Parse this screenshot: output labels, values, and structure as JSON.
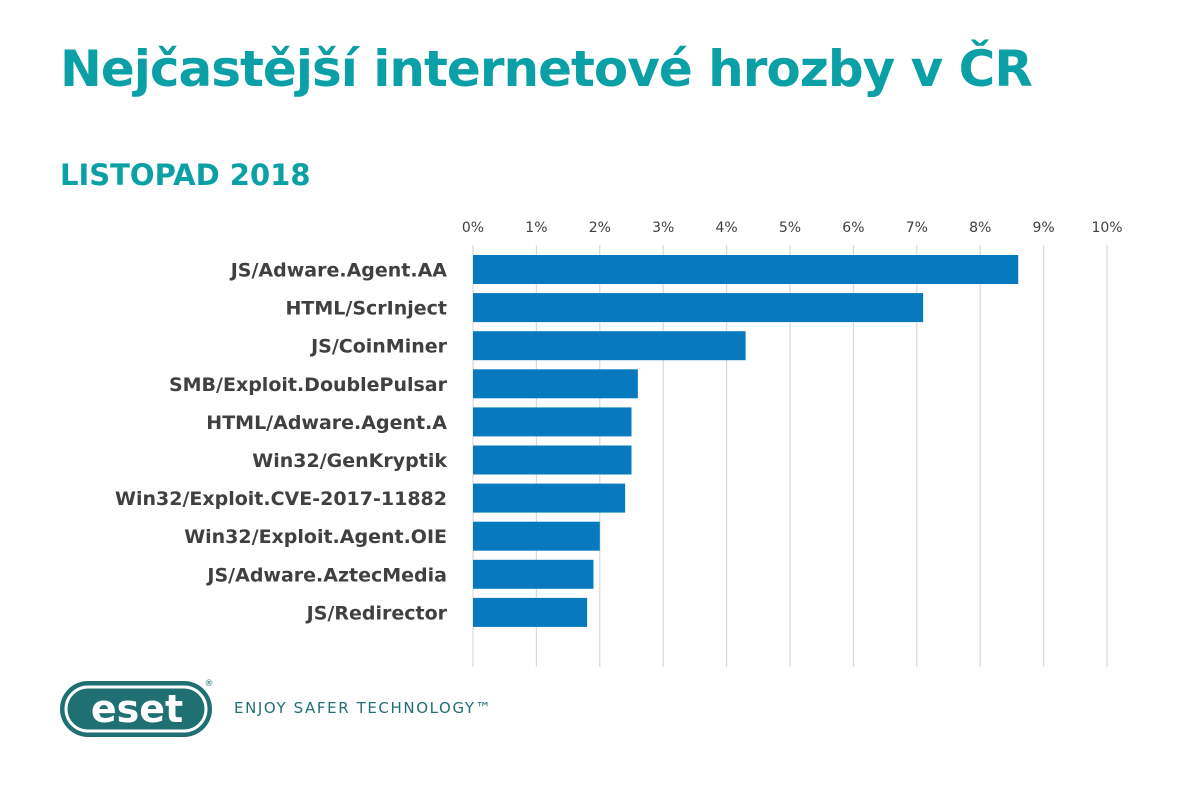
{
  "header": {
    "title": "Nejčastější internetové hrozby v ČR",
    "subtitle": "LISTOPAD 2018"
  },
  "chart_data": {
    "type": "bar",
    "orientation": "horizontal",
    "title": "Nejčastější internetové hrozby v ČR",
    "subtitle": "LISTOPAD 2018",
    "xlabel": "",
    "ylabel": "",
    "x_axis_position": "top",
    "xlim": [
      0,
      10
    ],
    "xticks": [
      0,
      1,
      2,
      3,
      4,
      5,
      6,
      7,
      8,
      9,
      10
    ],
    "tick_suffix": "%",
    "grid": true,
    "color": "#0779bf",
    "categories": [
      "JS/Adware.Agent.AA",
      "HTML/ScrInject",
      "JS/CoinMiner",
      "SMB/Exploit.DoublePulsar",
      "HTML/Adware.Agent.A",
      "Win32/GenKryptik",
      "Win32/Exploit.CVE-2017-11882",
      "Win32/Exploit.Agent.OIE",
      "JS/Adware.AztecMedia",
      "JS/Redirector"
    ],
    "values": [
      8.6,
      7.1,
      4.3,
      2.6,
      2.5,
      2.5,
      2.4,
      2.0,
      1.9,
      1.8
    ]
  },
  "branding": {
    "logo_text": "eset",
    "registered_mark": "®",
    "tagline": "ENJOY SAFER TECHNOLOGY™",
    "brand_color": "#1f6f73",
    "accent_color": "#0aa0a6"
  }
}
